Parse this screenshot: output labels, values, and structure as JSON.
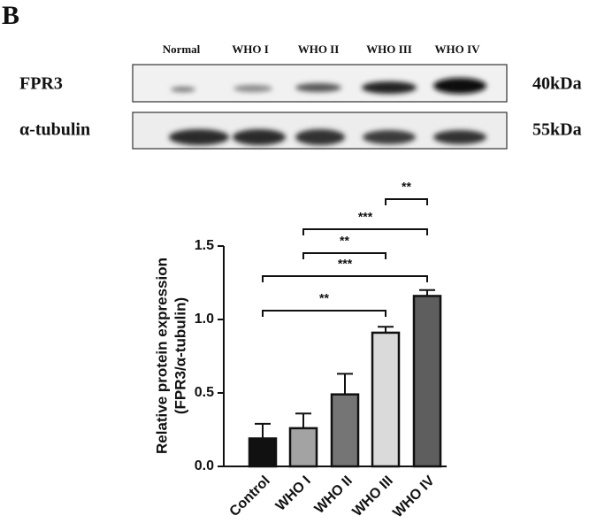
{
  "panel_label": "B",
  "blot": {
    "lanes": [
      "Normal",
      "WHO I",
      "WHO II",
      "WHO III",
      "WHO IV"
    ],
    "rows": [
      {
        "name": "FPR3",
        "size": "40kDa"
      },
      {
        "name": "α-tubulin",
        "size": "55kDa"
      }
    ]
  },
  "chart_data": {
    "type": "bar",
    "ylabel": [
      "Relative protein expression",
      "(FPR3/α-tubulin)"
    ],
    "categories": [
      "Control",
      "WHO I",
      "WHO II",
      "WHO III",
      "WHO IV"
    ],
    "values": [
      0.19,
      0.26,
      0.49,
      0.91,
      1.16
    ],
    "errors": [
      0.1,
      0.1,
      0.14,
      0.04,
      0.04
    ],
    "colors": [
      "#111111",
      "#a3a3a3",
      "#757575",
      "#dadada",
      "#5e5e5e"
    ],
    "ylim": [
      0,
      1.5
    ],
    "yticks": [
      {
        "value": 0,
        "label": "0.0"
      },
      0.5,
      {
        "value": 1,
        "label": "1.0"
      },
      1.5
    ],
    "annotations": [
      "**",
      "***",
      "**",
      "***",
      "**"
    ]
  }
}
